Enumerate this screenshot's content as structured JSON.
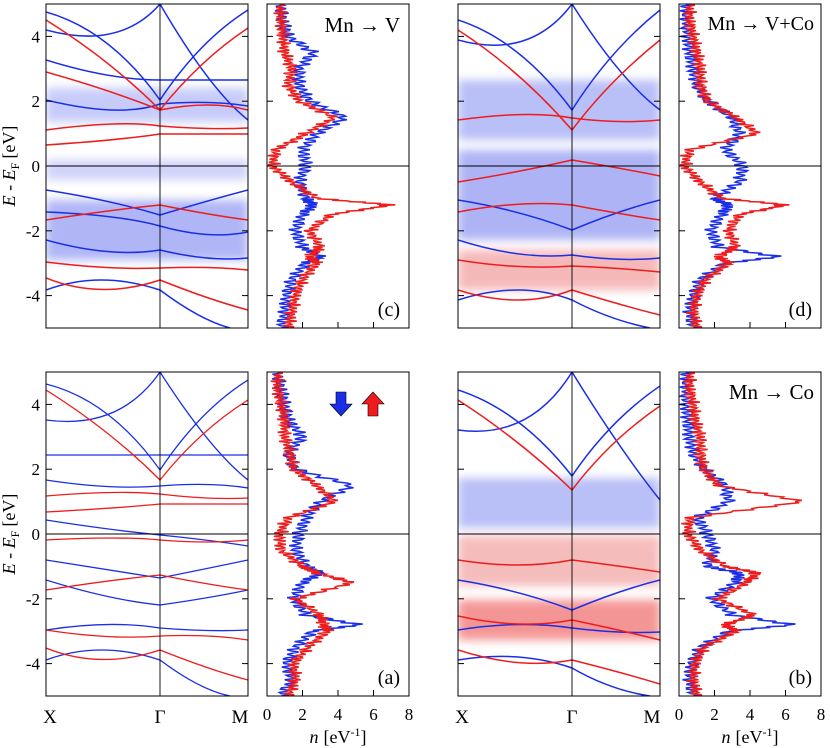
{
  "figure": {
    "y_axis_label_main": "E - E",
    "y_axis_label_sub": "F",
    "y_axis_unit": "[eV]",
    "x_axis_label_n": "n",
    "x_axis_unit": "[eV",
    "x_axis_unit_sup": "-1",
    "x_axis_unit_close": "]",
    "k_path_labels": [
      "X",
      "Γ",
      "M"
    ],
    "energy_ticks": [
      -4,
      -2,
      0,
      2,
      4
    ],
    "dos_ticks": [
      0,
      2,
      4,
      6,
      8
    ],
    "spin_down_color": "#1a2ee8",
    "spin_up_color": "#ee1c1c"
  },
  "chart_data": [
    {
      "type": "line",
      "panel": "(a)",
      "title": "",
      "legend": [
        "spin-down-arrow",
        "spin-up-arrow"
      ],
      "xlabel": "n [eV-1]",
      "ylabel": "E - EF [eV]",
      "xlim": [
        0,
        8
      ],
      "ylim": [
        -5,
        5
      ],
      "energy": [
        -5,
        -4.5,
        -4,
        -3.5,
        -3,
        -2.8,
        -2.5,
        -2,
        -1.5,
        -1.2,
        -1,
        -0.5,
        0,
        0.5,
        1,
        1.5,
        2,
        2.5,
        3,
        3.5,
        4,
        4.5,
        5
      ],
      "series": [
        {
          "name": "spin down",
          "values": [
            0.8,
            1.4,
            1.1,
            1.6,
            2.6,
            5.2,
            2.2,
            1.5,
            2.0,
            3.0,
            2.2,
            1.6,
            1.8,
            2.2,
            3.0,
            4.8,
            1.6,
            1.2,
            2.0,
            1.2,
            1.0,
            0.8,
            0.6
          ]
        },
        {
          "name": "spin up",
          "values": [
            1.2,
            1.6,
            1.5,
            2.3,
            3.4,
            3.2,
            3.0,
            1.6,
            4.8,
            2.8,
            2.0,
            0.8,
            0.7,
            1.2,
            3.8,
            2.8,
            1.5,
            1.3,
            1.0,
            1.0,
            0.8,
            0.6,
            0.6
          ]
        }
      ]
    },
    {
      "type": "line",
      "panel": "(b)",
      "title": "Mn → Co",
      "xlabel": "n [eV-1]",
      "ylabel": "E - EF [eV]",
      "xlim": [
        0,
        8
      ],
      "ylim": [
        -5,
        5
      ],
      "energy": [
        -5,
        -4.5,
        -4,
        -3.5,
        -3,
        -2.8,
        -2.5,
        -2,
        -1.5,
        -1.2,
        -1,
        -0.5,
        0,
        0.5,
        1,
        1.5,
        2,
        2.5,
        3,
        3.5,
        4,
        4.5,
        5
      ],
      "series": [
        {
          "name": "spin down",
          "values": [
            0.8,
            0.6,
            0.7,
            1.2,
            2.8,
            6.4,
            3.0,
            1.8,
            3.2,
            3.4,
            1.6,
            2.0,
            1.6,
            1.0,
            2.8,
            2.6,
            1.4,
            0.8,
            0.6,
            0.5,
            0.4,
            0.4,
            0.4
          ]
        },
        {
          "name": "spin up",
          "values": [
            1.0,
            0.8,
            0.9,
            1.4,
            3.2,
            2.6,
            4.2,
            2.2,
            3.8,
            4.4,
            2.6,
            1.2,
            0.5,
            0.6,
            7.0,
            2.2,
            1.4,
            1.2,
            1.2,
            0.9,
            0.8,
            0.6,
            0.6
          ]
        }
      ]
    },
    {
      "type": "line",
      "panel": "(c)",
      "title": "Mn → V",
      "xlabel": "n [eV-1]",
      "ylabel": "E - EF [eV]",
      "xlim": [
        0,
        8
      ],
      "ylim": [
        -5,
        5
      ],
      "energy": [
        -5,
        -4.5,
        -4,
        -3.5,
        -3,
        -2.8,
        -2.5,
        -2,
        -1.5,
        -1.2,
        -1,
        -0.5,
        0,
        0.5,
        1,
        1.5,
        2,
        2.5,
        3,
        3.5,
        4,
        4.5,
        5
      ],
      "series": [
        {
          "name": "spin down",
          "values": [
            0.8,
            1.0,
            1.1,
            1.4,
            2.2,
            3.0,
            2.0,
            1.6,
            2.0,
            2.6,
            2.2,
            1.8,
            2.2,
            2.0,
            2.8,
            4.4,
            2.4,
            1.8,
            1.8,
            2.6,
            1.2,
            0.9,
            0.8
          ]
        },
        {
          "name": "spin up",
          "values": [
            1.2,
            1.4,
            1.6,
            2.0,
            2.8,
            2.4,
            3.0,
            2.4,
            3.6,
            7.0,
            2.8,
            1.4,
            0.3,
            0.5,
            2.2,
            3.8,
            1.8,
            1.2,
            1.4,
            1.0,
            0.9,
            0.8,
            0.7
          ]
        }
      ]
    },
    {
      "type": "line",
      "panel": "(d)",
      "title": "Mn → V+Co",
      "xlabel": "n [eV-1]",
      "ylabel": "E - EF [eV]",
      "xlim": [
        0,
        8
      ],
      "ylim": [
        -5,
        5
      ],
      "energy": [
        -5,
        -4.5,
        -4,
        -3.5,
        -3,
        -2.8,
        -2.5,
        -2,
        -1.5,
        -1.2,
        -1,
        -0.5,
        0,
        0.5,
        1,
        1.5,
        2,
        2.5,
        3,
        3.5,
        4,
        4.5,
        5
      ],
      "series": [
        {
          "name": "spin down",
          "values": [
            0.8,
            0.6,
            0.8,
            1.2,
            2.6,
            5.6,
            2.2,
            1.8,
            2.4,
            2.8,
            2.0,
            3.4,
            3.6,
            2.6,
            3.4,
            3.0,
            1.6,
            1.0,
            0.8,
            0.6,
            0.5,
            0.4,
            0.4
          ]
        },
        {
          "name": "spin up",
          "values": [
            1.0,
            0.8,
            1.0,
            1.5,
            2.8,
            2.2,
            3.2,
            2.8,
            3.4,
            6.0,
            2.4,
            1.2,
            0.3,
            0.6,
            4.4,
            3.2,
            1.6,
            1.2,
            1.2,
            1.0,
            0.8,
            0.6,
            0.6
          ]
        }
      ]
    }
  ]
}
